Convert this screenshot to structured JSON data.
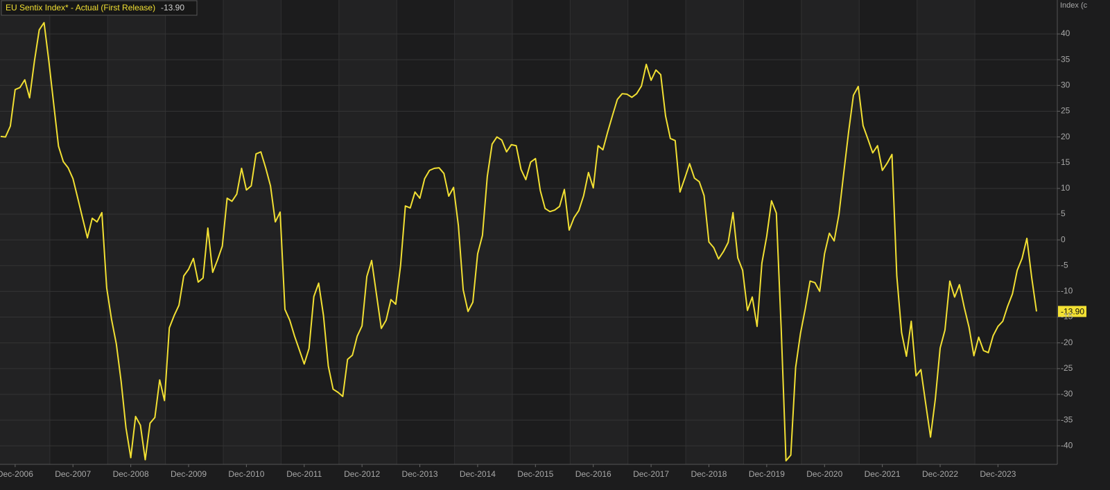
{
  "chart_data": {
    "type": "line",
    "legend_title": "EU Sentix Index* - Actual (First Release)",
    "y_label": "Index (c",
    "last_value_label": "-13.90",
    "x": [
      "Sep-2006",
      "Oct-2006",
      "Nov-2006",
      "Dec-2006",
      "Jan-2007",
      "Feb-2007",
      "Mar-2007",
      "Apr-2007",
      "May-2007",
      "Jun-2007",
      "Jul-2007",
      "Aug-2007",
      "Sep-2007",
      "Oct-2007",
      "Nov-2007",
      "Dec-2007",
      "Jan-2008",
      "Feb-2008",
      "Mar-2008",
      "Apr-2008",
      "May-2008",
      "Jun-2008",
      "Jul-2008",
      "Aug-2008",
      "Sep-2008",
      "Oct-2008",
      "Nov-2008",
      "Dec-2008",
      "Jan-2009",
      "Feb-2009",
      "Mar-2009",
      "Apr-2009",
      "May-2009",
      "Jun-2009",
      "Jul-2009",
      "Aug-2009",
      "Sep-2009",
      "Oct-2009",
      "Nov-2009",
      "Dec-2009",
      "Jan-2010",
      "Feb-2010",
      "Mar-2010",
      "Apr-2010",
      "May-2010",
      "Jun-2010",
      "Jul-2010",
      "Aug-2010",
      "Sep-2010",
      "Oct-2010",
      "Nov-2010",
      "Dec-2010",
      "Jan-2011",
      "Feb-2011",
      "Mar-2011",
      "Apr-2011",
      "May-2011",
      "Jun-2011",
      "Jul-2011",
      "Aug-2011",
      "Sep-2011",
      "Oct-2011",
      "Nov-2011",
      "Dec-2011",
      "Jan-2012",
      "Feb-2012",
      "Mar-2012",
      "Apr-2012",
      "May-2012",
      "Jun-2012",
      "Jul-2012",
      "Aug-2012",
      "Sep-2012",
      "Oct-2012",
      "Nov-2012",
      "Dec-2012",
      "Jan-2013",
      "Feb-2013",
      "Mar-2013",
      "Apr-2013",
      "May-2013",
      "Jun-2013",
      "Jul-2013",
      "Aug-2013",
      "Sep-2013",
      "Oct-2013",
      "Nov-2013",
      "Dec-2013",
      "Jan-2014",
      "Feb-2014",
      "Mar-2014",
      "Apr-2014",
      "May-2014",
      "Jun-2014",
      "Jul-2014",
      "Aug-2014",
      "Sep-2014",
      "Oct-2014",
      "Nov-2014",
      "Dec-2014",
      "Jan-2015",
      "Feb-2015",
      "Mar-2015",
      "Apr-2015",
      "May-2015",
      "Jun-2015",
      "Jul-2015",
      "Aug-2015",
      "Sep-2015",
      "Oct-2015",
      "Nov-2015",
      "Dec-2015",
      "Jan-2016",
      "Feb-2016",
      "Mar-2016",
      "Apr-2016",
      "May-2016",
      "Jun-2016",
      "Jul-2016",
      "Aug-2016",
      "Sep-2016",
      "Oct-2016",
      "Nov-2016",
      "Dec-2016",
      "Jan-2017",
      "Feb-2017",
      "Mar-2017",
      "Apr-2017",
      "May-2017",
      "Jun-2017",
      "Jul-2017",
      "Aug-2017",
      "Sep-2017",
      "Oct-2017",
      "Nov-2017",
      "Dec-2017",
      "Jan-2018",
      "Feb-2018",
      "Mar-2018",
      "Apr-2018",
      "May-2018",
      "Jun-2018",
      "Jul-2018",
      "Aug-2018",
      "Sep-2018",
      "Oct-2018",
      "Nov-2018",
      "Dec-2018",
      "Jan-2019",
      "Feb-2019",
      "Mar-2019",
      "Apr-2019",
      "May-2019",
      "Jun-2019",
      "Jul-2019",
      "Aug-2019",
      "Sep-2019",
      "Oct-2019",
      "Nov-2019",
      "Dec-2019",
      "Jan-2020",
      "Feb-2020",
      "Mar-2020",
      "Apr-2020",
      "May-2020",
      "Jun-2020",
      "Jul-2020",
      "Aug-2020",
      "Sep-2020",
      "Oct-2020",
      "Nov-2020",
      "Dec-2020",
      "Jan-2021",
      "Feb-2021",
      "Mar-2021",
      "Apr-2021",
      "May-2021",
      "Jun-2021",
      "Jul-2021",
      "Aug-2021",
      "Sep-2021",
      "Oct-2021",
      "Nov-2021",
      "Dec-2021",
      "Jan-2022",
      "Feb-2022",
      "Mar-2022",
      "Apr-2022",
      "May-2022",
      "Jun-2022",
      "Jul-2022",
      "Aug-2022",
      "Sep-2022",
      "Oct-2022",
      "Nov-2022",
      "Dec-2022",
      "Jan-2023",
      "Feb-2023",
      "Mar-2023",
      "Apr-2023",
      "May-2023",
      "Jun-2023",
      "Jul-2023",
      "Aug-2023",
      "Sep-2023",
      "Oct-2023",
      "Nov-2023",
      "Dec-2023",
      "Jan-2024",
      "Feb-2024",
      "Mar-2024",
      "Apr-2024",
      "May-2024",
      "Jun-2024",
      "Jul-2024",
      "Aug-2024"
    ],
    "series": [
      {
        "name": "EU Sentix Index* - Actual (First Release)",
        "color": "#f2e033",
        "values": [
          20.1,
          20,
          22.1,
          29.2,
          29.6,
          31.1,
          27.6,
          34.7,
          40.8,
          42.2,
          34.7,
          26.4,
          18.2,
          15.2,
          14,
          11.9,
          8.1,
          4.2,
          0.4,
          4.2,
          3.5,
          5.3,
          -9.3,
          -15.4,
          -20.2,
          -27.5,
          -36.5,
          -42.3,
          -34.3,
          -36,
          -42.7,
          -35.6,
          -34.5,
          -27.2,
          -31.2,
          -17.1,
          -14.7,
          -12.7,
          -7,
          -5.7,
          -3.6,
          -8.2,
          -7.4,
          2.3,
          -6.3,
          -3.9,
          -1.2,
          8.1,
          7.5,
          8.9,
          13.9,
          9.7,
          10.5,
          16.7,
          17.1,
          14,
          10.5,
          3.5,
          5.4,
          -13.5,
          -15.6,
          -18.7,
          -21.4,
          -24.1,
          -21.1,
          -11,
          -8.4,
          -14.7,
          -24.5,
          -29,
          -29.6,
          -30.4,
          -23.2,
          -22.4,
          -18.7,
          -16.7,
          -7.1,
          -4,
          -10.6,
          -17.2,
          -15.6,
          -11.6,
          -12.5,
          -5,
          6.6,
          6.2,
          9.3,
          8.1,
          11.9,
          13.5,
          13.9,
          14,
          12.9,
          8.5,
          10.2,
          2.8,
          -9.7,
          -13.9,
          -12.1,
          -2.7,
          0.9,
          12.3,
          18.6,
          20,
          19.4,
          17.1,
          18.5,
          18.3,
          13.7,
          11.7,
          15.1,
          15.8,
          9.6,
          6.1,
          5.5,
          5.8,
          6.5,
          9.8,
          1.9,
          4.3,
          5.7,
          8.6,
          13.1,
          10.1,
          18.3,
          17.5,
          21,
          24.2,
          27.3,
          28.4,
          28.3,
          27.7,
          28.4,
          29.9,
          34.1,
          31,
          33,
          32.1,
          24.1,
          19.7,
          19.3,
          9.3,
          12,
          14.8,
          12,
          11.3,
          8.6,
          -0.4,
          -1.5,
          -3.7,
          -2.3,
          -0.5,
          5.3,
          -3.5,
          -5.9,
          -13.7,
          -11.1,
          -16.8,
          -4.5,
          0.7,
          7.6,
          5.2,
          -17.1,
          -42.9,
          -41.8,
          -24.8,
          -18.2,
          -13.4,
          -8,
          -8.3,
          -10,
          -2.7,
          1.3,
          -0.2,
          5,
          13.1,
          21,
          28.1,
          29.8,
          22.2,
          19.6,
          16.9,
          18.3,
          13.5,
          14.9,
          16.6,
          -7,
          -18,
          -22.6,
          -15.8,
          -26.4,
          -25.2,
          -31.8,
          -38.3,
          -30.9,
          -21,
          -17.5,
          -8,
          -11.1,
          -8.7,
          -13.1,
          -17,
          -22.5,
          -18.9,
          -21.5,
          -21.9,
          -18.6,
          -16.8,
          -15.8,
          -12.9,
          -10.5,
          -5.9,
          -3.6,
          0.3,
          -7.3,
          -13.9
        ]
      }
    ],
    "xticks": [
      "Dec-2006",
      "Dec-2007",
      "Dec-2008",
      "Dec-2009",
      "Dec-2010",
      "Dec-2011",
      "Dec-2012",
      "Dec-2013",
      "Dec-2014",
      "Dec-2015",
      "Dec-2016",
      "Dec-2017",
      "Dec-2018",
      "Dec-2019",
      "Dec-2020",
      "Dec-2021",
      "Dec-2022",
      "Dec-2023"
    ],
    "ylim": [
      -43.6,
      46.6
    ],
    "yticks": [
      -40,
      -35,
      -30,
      -25,
      -20,
      -15,
      -10,
      -5,
      0,
      5,
      10,
      15,
      20,
      25,
      30,
      35,
      40
    ],
    "grid": true
  }
}
